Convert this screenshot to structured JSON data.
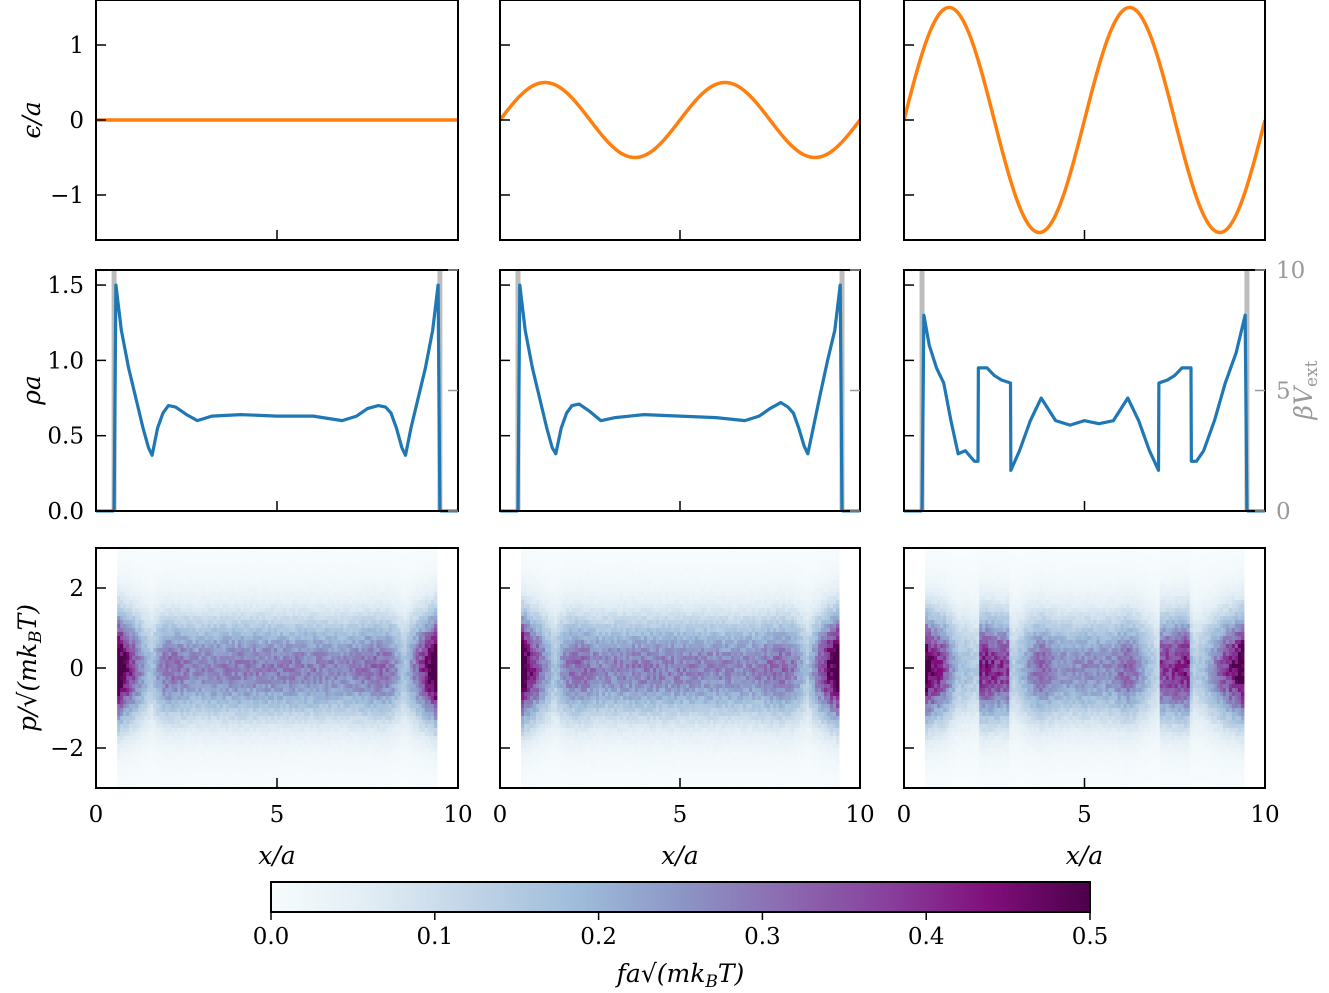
{
  "chart_data": [
    {
      "type": "line",
      "row": "strain",
      "panels": [
        {
          "amplitude": 0.0
        },
        {
          "amplitude": 0.5
        },
        {
          "amplitude": 1.5
        }
      ],
      "function": "epsilon = amplitude * sin(2*pi*x/5)",
      "xlim": [
        0,
        10
      ],
      "ylim": [
        -1.6,
        1.6
      ],
      "yticks": [
        -1,
        0,
        1
      ],
      "ytick_labels": [
        "−1",
        "0",
        "1"
      ],
      "ylabel": "ϵ/a",
      "color": "#ff7f0e"
    },
    {
      "type": "line",
      "row": "density",
      "xlim": [
        0,
        10
      ],
      "ylim": [
        0,
        1.6
      ],
      "yticks": [
        0.0,
        0.5,
        1.0,
        1.5
      ],
      "ytick_labels": [
        "0.0",
        "0.5",
        "1.0",
        "1.5"
      ],
      "ylabel": "ρa",
      "secondary_ylabel": "βV",
      "secondary_ylabel_sub": "ext",
      "secondary_ylim": [
        0,
        10
      ],
      "secondary_yticks": [
        0,
        5,
        10
      ],
      "secondary_ytick_labels": [
        "0",
        "5",
        "10"
      ],
      "wall_positions": [
        0.5,
        9.5
      ],
      "color": "#1f77b4",
      "wall_color": "#bdbdbd",
      "panels": [
        {
          "x": [
            0.5,
            0.55,
            0.7,
            0.9,
            1.1,
            1.3,
            1.45,
            1.55,
            1.7,
            1.85,
            2.0,
            2.2,
            2.5,
            2.8,
            3.2,
            4.0,
            5.0,
            6.0,
            6.8,
            7.2,
            7.5,
            7.8,
            8.0,
            8.15,
            8.3,
            8.45,
            8.55,
            8.7,
            8.9,
            9.1,
            9.3,
            9.45,
            9.5
          ],
          "y": [
            0.0,
            1.5,
            1.2,
            0.95,
            0.75,
            0.55,
            0.42,
            0.37,
            0.55,
            0.65,
            0.7,
            0.69,
            0.64,
            0.6,
            0.63,
            0.64,
            0.63,
            0.63,
            0.6,
            0.63,
            0.68,
            0.7,
            0.69,
            0.65,
            0.55,
            0.42,
            0.37,
            0.55,
            0.75,
            0.95,
            1.2,
            1.5,
            0.0
          ]
        },
        {
          "x": [
            0.5,
            0.55,
            0.7,
            0.9,
            1.1,
            1.3,
            1.45,
            1.55,
            1.7,
            1.85,
            2.0,
            2.2,
            2.5,
            2.8,
            3.2,
            4.0,
            5.0,
            6.0,
            6.8,
            7.2,
            7.5,
            7.8,
            8.0,
            8.15,
            8.3,
            8.45,
            8.55,
            8.7,
            8.9,
            9.1,
            9.3,
            9.45,
            9.5
          ],
          "y": [
            0.0,
            1.5,
            1.2,
            0.95,
            0.75,
            0.55,
            0.42,
            0.38,
            0.55,
            0.65,
            0.7,
            0.71,
            0.66,
            0.6,
            0.62,
            0.64,
            0.63,
            0.62,
            0.6,
            0.63,
            0.68,
            0.72,
            0.69,
            0.65,
            0.55,
            0.43,
            0.38,
            0.55,
            0.78,
            1.0,
            1.2,
            1.5,
            0.0
          ]
        },
        {
          "x": [
            0.5,
            0.55,
            0.7,
            0.9,
            1.1,
            1.3,
            1.5,
            1.7,
            1.95,
            2.05,
            2.06,
            2.3,
            2.5,
            2.7,
            2.95,
            2.96,
            3.2,
            3.5,
            3.8,
            4.2,
            4.6,
            5.0,
            5.4,
            5.8,
            6.2,
            6.5,
            6.8,
            7.05,
            7.06,
            7.3,
            7.5,
            7.7,
            7.95,
            7.96,
            8.1,
            8.3,
            8.6,
            8.9,
            9.2,
            9.45,
            9.5
          ],
          "y": [
            0.0,
            1.3,
            1.1,
            0.95,
            0.85,
            0.6,
            0.38,
            0.4,
            0.33,
            0.33,
            0.95,
            0.95,
            0.9,
            0.87,
            0.85,
            0.27,
            0.4,
            0.6,
            0.75,
            0.6,
            0.57,
            0.6,
            0.58,
            0.6,
            0.75,
            0.6,
            0.4,
            0.27,
            0.85,
            0.87,
            0.9,
            0.95,
            0.95,
            0.33,
            0.33,
            0.4,
            0.6,
            0.85,
            1.05,
            1.3,
            0.0
          ]
        }
      ]
    },
    {
      "type": "heatmap",
      "row": "phase_space",
      "xlim": [
        0,
        10
      ],
      "ylim": [
        -3,
        3
      ],
      "xticks": [
        0,
        5,
        10
      ],
      "xtick_labels": [
        "0",
        "5",
        "10"
      ],
      "yticks": [
        -2,
        0,
        2
      ],
      "ytick_labels": [
        "−2",
        "0",
        "2"
      ],
      "xlabel": "x/a",
      "ylabel": "p/√(mk",
      "ylabel_sub": "B",
      "ylabel_end": "T)",
      "momentum_width": 0.9,
      "panels": [
        {
          "density_profile_ref": 0
        },
        {
          "density_profile_ref": 1
        },
        {
          "density_profile_ref": 2
        }
      ]
    },
    {
      "type": "colorbar",
      "range": [
        0.0,
        0.5
      ],
      "ticks": [
        0.0,
        0.1,
        0.2,
        0.3,
        0.4,
        0.5
      ],
      "tick_labels": [
        "0.0",
        "0.1",
        "0.2",
        "0.3",
        "0.4",
        "0.5"
      ],
      "label": "fa√(mk",
      "label_sub": "B",
      "label_end": "T)",
      "colormap": "BuPu",
      "colormap_stops": [
        "#f7fcfd",
        "#e0ecf4",
        "#bfd3e6",
        "#9ebcda",
        "#8c96c6",
        "#8c6bb1",
        "#88419d",
        "#810f7c",
        "#4d004b"
      ]
    }
  ]
}
